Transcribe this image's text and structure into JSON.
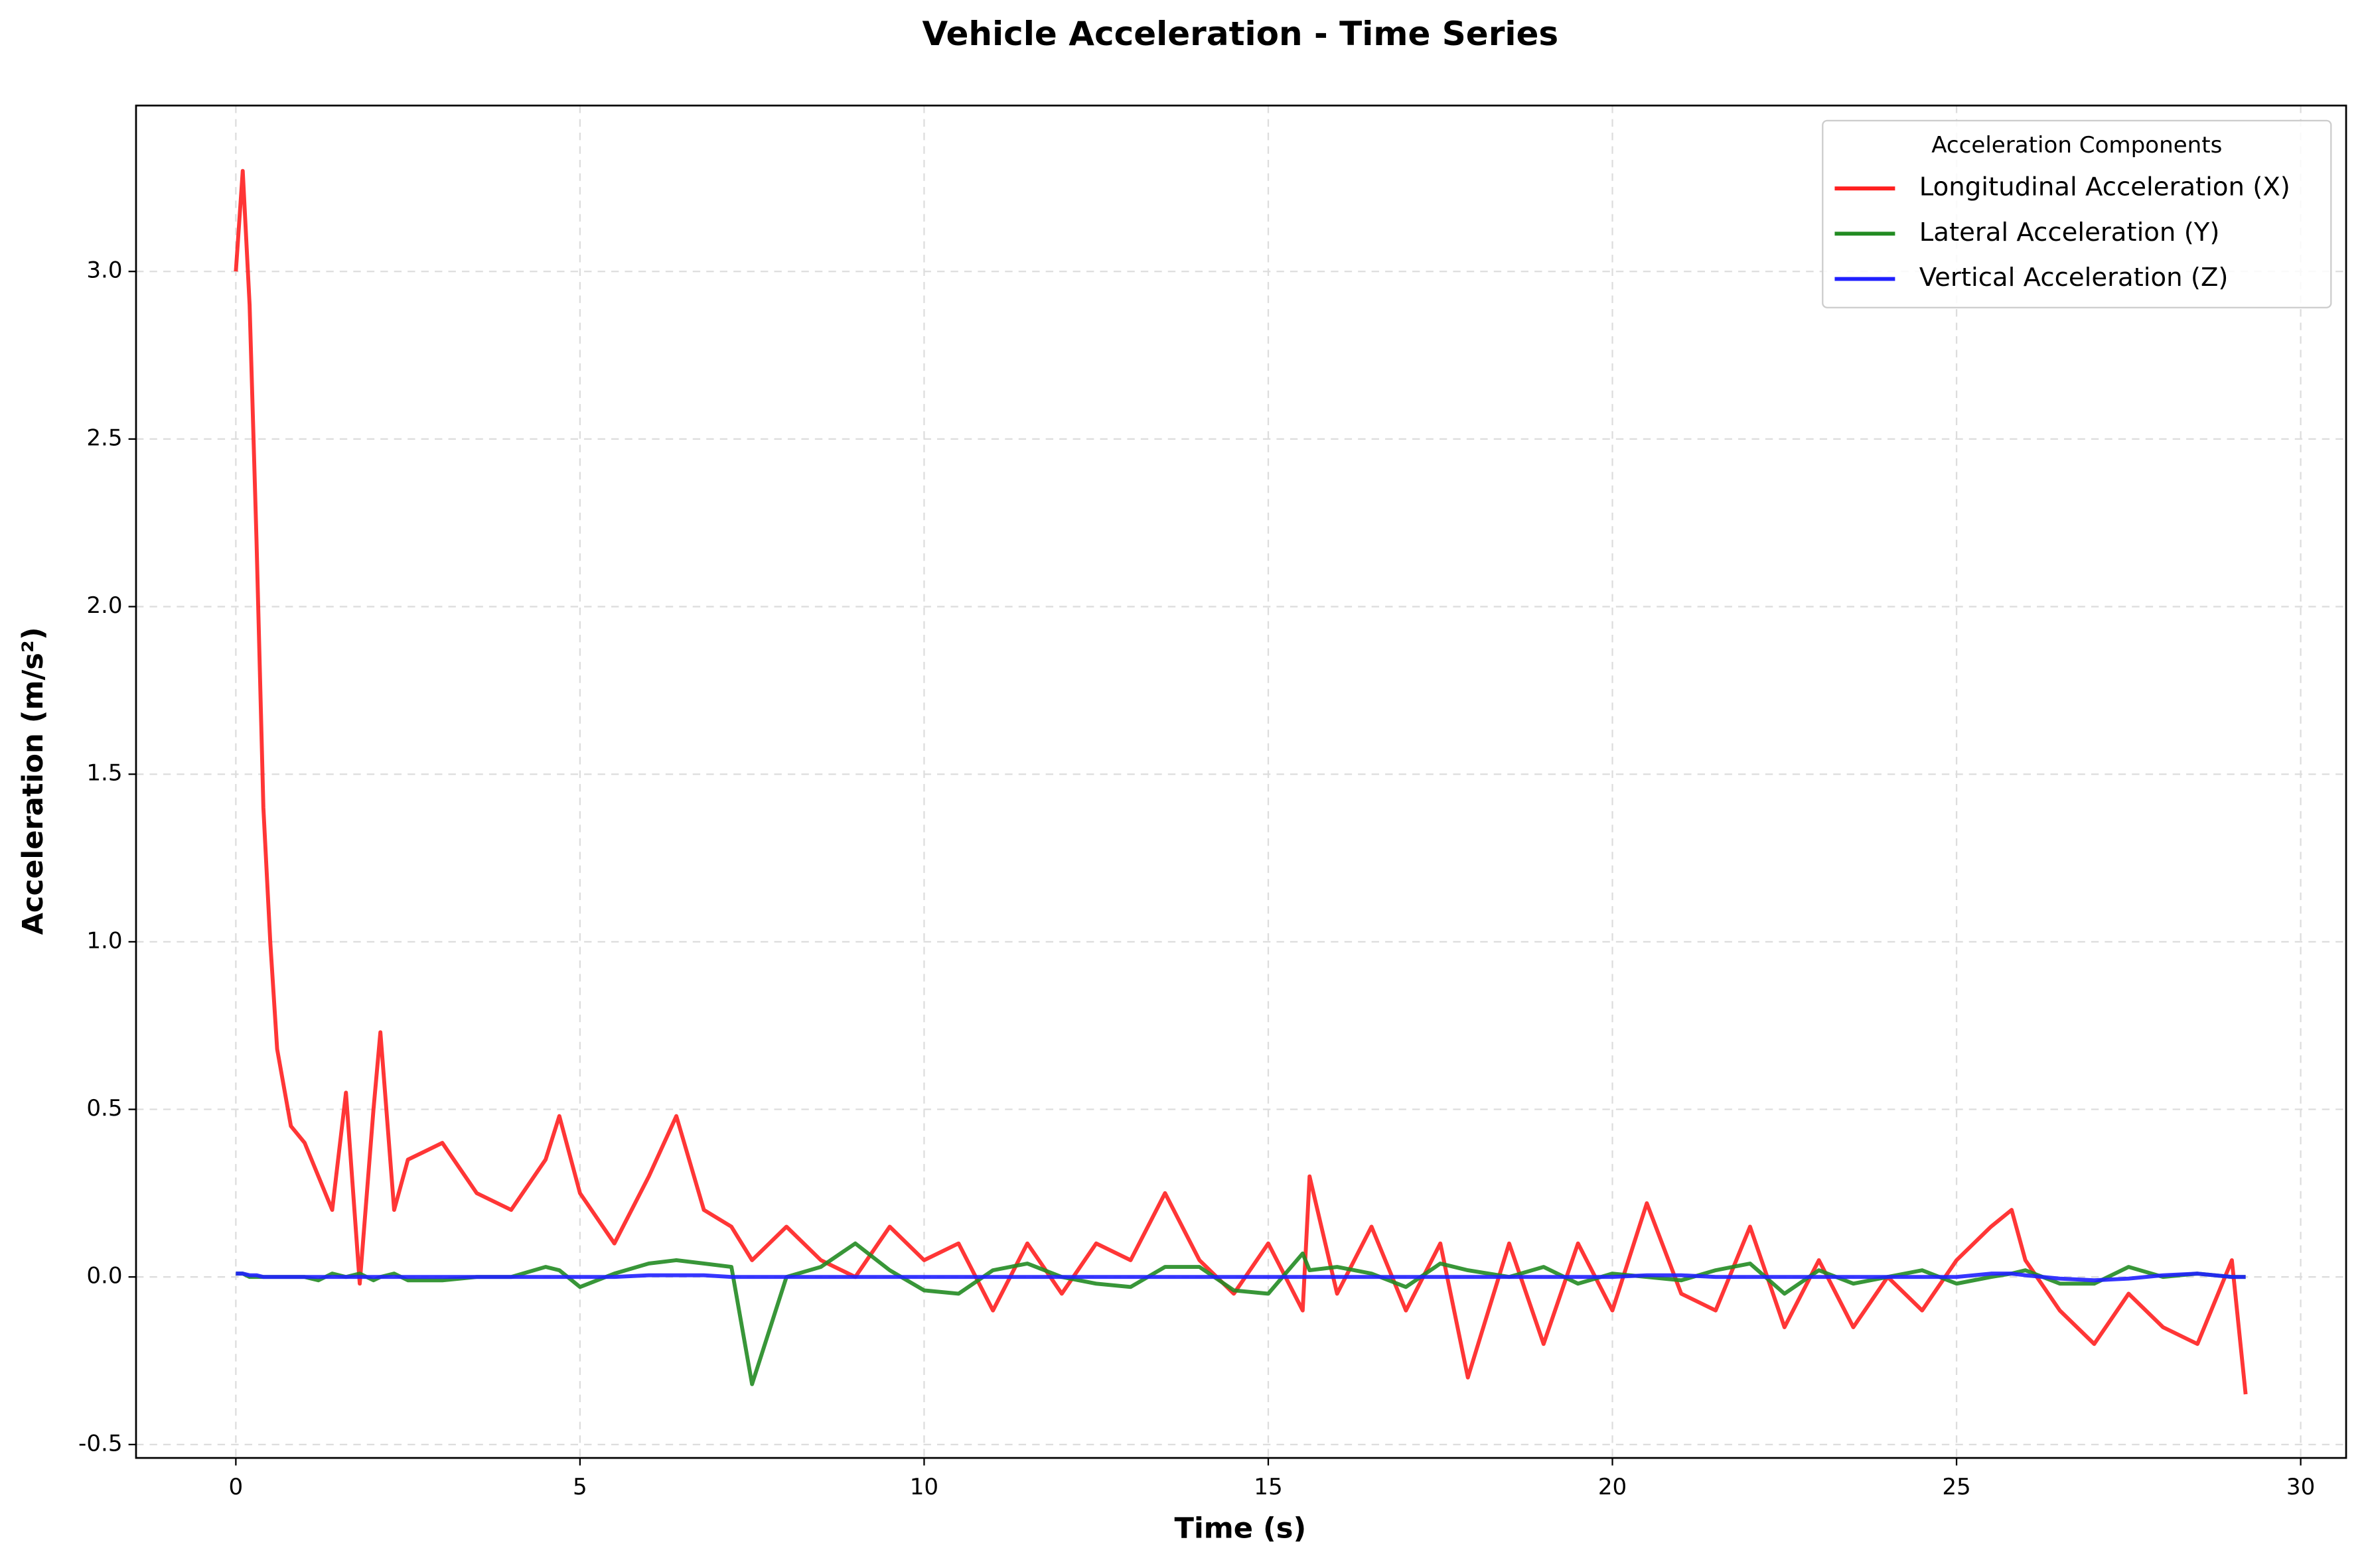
{
  "chart_data": {
    "type": "line",
    "title": "Vehicle Acceleration - Time Series",
    "xlabel": "Time (s)",
    "ylabel": "Acceleration (m/s²)",
    "legend_title": "Acceleration Components",
    "legend": "upper right",
    "grid": true,
    "xlim": [
      -1.45,
      30.66
    ],
    "ylim": [
      -0.54,
      3.495
    ],
    "xticks": [
      0,
      5,
      10,
      15,
      20,
      25,
      30
    ],
    "yticks": [
      {
        "value": -0.5,
        "label": "-0.5"
      },
      {
        "value": 0,
        "label": "0.0"
      },
      0.5,
      {
        "value": 1,
        "label": "1.0"
      },
      1.5,
      {
        "value": 2,
        "label": "2.0"
      },
      2.5,
      {
        "value": 3,
        "label": "3.0"
      }
    ],
    "x": [
      0,
      0.1,
      0.2,
      0.3,
      0.4,
      0.5,
      0.6,
      0.8,
      1.0,
      1.2,
      1.4,
      1.6,
      1.8,
      2.0,
      2.1,
      2.3,
      2.5,
      3.0,
      3.5,
      4.0,
      4.5,
      4.7,
      5.0,
      5.5,
      6.0,
      6.4,
      6.8,
      7.2,
      7.5,
      8.0,
      8.5,
      9.0,
      9.5,
      10.0,
      10.5,
      11.0,
      11.5,
      12.0,
      12.5,
      13.0,
      13.5,
      14.0,
      14.5,
      15.0,
      15.5,
      15.6,
      16.0,
      16.5,
      17.0,
      17.5,
      17.9,
      18.5,
      19.0,
      19.5,
      20.0,
      20.5,
      21.0,
      21.5,
      22.0,
      22.5,
      23.0,
      23.5,
      24.0,
      24.5,
      25.0,
      25.5,
      25.8,
      26.0,
      26.5,
      27.0,
      27.5,
      28.0,
      28.5,
      29.0,
      29.2
    ],
    "series": [
      {
        "name": "Longitudinal Acceleration (X)",
        "color": "#ff2020",
        "values": [
          3.0,
          3.3,
          2.9,
          2.2,
          1.4,
          1.0,
          0.68,
          0.45,
          0.4,
          0.3,
          0.2,
          0.55,
          -0.02,
          0.5,
          0.73,
          0.2,
          0.35,
          0.4,
          0.25,
          0.2,
          0.35,
          0.48,
          0.25,
          0.1,
          0.3,
          0.48,
          0.2,
          0.15,
          0.05,
          0.15,
          0.05,
          0.0,
          0.15,
          0.05,
          0.1,
          -0.1,
          0.1,
          -0.05,
          0.1,
          0.05,
          0.25,
          0.05,
          -0.05,
          0.1,
          -0.1,
          0.3,
          -0.05,
          0.15,
          -0.1,
          0.1,
          -0.3,
          0.1,
          -0.2,
          0.1,
          -0.1,
          0.22,
          -0.05,
          -0.1,
          0.15,
          -0.15,
          0.05,
          -0.15,
          0.0,
          -0.1,
          0.05,
          0.15,
          0.2,
          0.05,
          -0.1,
          -0.2,
          -0.05,
          -0.15,
          -0.2,
          0.05,
          -0.35
        ]
      },
      {
        "name": "Lateral Acceleration (Y)",
        "color": "#228b22",
        "values": [
          0.01,
          0.01,
          0.0,
          0.0,
          0.0,
          0.0,
          0.0,
          0.0,
          0.0,
          -0.01,
          0.01,
          0.0,
          0.01,
          -0.01,
          0.0,
          0.01,
          -0.01,
          -0.01,
          0.0,
          0.0,
          0.03,
          0.02,
          -0.03,
          0.01,
          0.04,
          0.05,
          0.04,
          0.03,
          -0.32,
          0.0,
          0.03,
          0.1,
          0.02,
          -0.04,
          -0.05,
          0.02,
          0.04,
          0.0,
          -0.02,
          -0.03,
          0.03,
          0.03,
          -0.04,
          -0.05,
          0.07,
          0.02,
          0.03,
          0.01,
          -0.03,
          0.04,
          0.02,
          0.0,
          0.03,
          -0.02,
          0.01,
          0.0,
          -0.01,
          0.02,
          0.04,
          -0.05,
          0.02,
          -0.02,
          0.0,
          0.02,
          -0.02,
          0.0,
          0.01,
          0.02,
          -0.02,
          -0.02,
          0.03,
          0.0,
          0.01,
          0.0,
          0.0
        ]
      },
      {
        "name": "Vertical Acceleration (Z)",
        "color": "#2020ff",
        "values": [
          0.01,
          0.01,
          0.005,
          0.005,
          0,
          0,
          0,
          0,
          0,
          0,
          0,
          0,
          0,
          0,
          0,
          0,
          0,
          0,
          0,
          0,
          0,
          0,
          0,
          0,
          0.005,
          0.005,
          0.005,
          0,
          0,
          0,
          0,
          0,
          0,
          0,
          0,
          0,
          0,
          0,
          0,
          0,
          0,
          0,
          0,
          0,
          0,
          0,
          0,
          0,
          0,
          0,
          0,
          0,
          0,
          0,
          0,
          0.005,
          0.005,
          0,
          0,
          0,
          0,
          0,
          0,
          0,
          0,
          0.01,
          0.01,
          0.005,
          -0.005,
          -0.01,
          -0.005,
          0.005,
          0.01,
          0.0,
          0.0
        ]
      }
    ]
  }
}
